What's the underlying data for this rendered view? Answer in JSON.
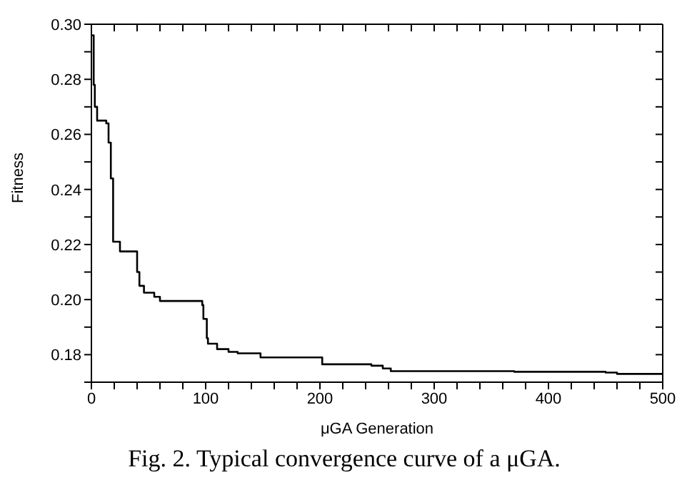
{
  "chart_data": {
    "type": "step",
    "xlabel": "μGA Generation",
    "ylabel": "Fitness",
    "annotations": [
      "Fig. 2.  Typical convergence curve of a μGA."
    ],
    "x": [
      0,
      2,
      3,
      5,
      13,
      15,
      17,
      19,
      25,
      39,
      40,
      42,
      46,
      55,
      60,
      96,
      97,
      98,
      101,
      102,
      110,
      120,
      128,
      148,
      202,
      245,
      255,
      262,
      370,
      450,
      460,
      500
    ],
    "series": [
      {
        "color": "#000000",
        "values": [
          0.296,
          0.278,
          0.27,
          0.265,
          0.264,
          0.257,
          0.244,
          0.221,
          0.2175,
          0.2175,
          0.21,
          0.205,
          0.2025,
          0.201,
          0.1995,
          0.1995,
          0.198,
          0.193,
          0.186,
          0.184,
          0.182,
          0.181,
          0.1805,
          0.179,
          0.1765,
          0.176,
          0.175,
          0.174,
          0.1738,
          0.1735,
          0.173,
          0.173
        ]
      }
    ],
    "xlim": [
      0,
      500
    ],
    "ylim": [
      0.17,
      0.3
    ],
    "xticks": [
      0,
      {
        "value": 20,
        "label": null
      },
      {
        "value": 40,
        "label": null
      },
      {
        "value": 60,
        "label": null
      },
      {
        "value": 80,
        "label": null
      },
      100,
      {
        "value": 120,
        "label": null
      },
      {
        "value": 140,
        "label": null
      },
      {
        "value": 160,
        "label": null
      },
      {
        "value": 180,
        "label": null
      },
      200,
      {
        "value": 220,
        "label": null
      },
      {
        "value": 240,
        "label": null
      },
      {
        "value": 260,
        "label": null
      },
      {
        "value": 280,
        "label": null
      },
      300,
      {
        "value": 320,
        "label": null
      },
      {
        "value": 340,
        "label": null
      },
      {
        "value": 360,
        "label": null
      },
      {
        "value": 380,
        "label": null
      },
      400,
      {
        "value": 420,
        "label": null
      },
      {
        "value": 440,
        "label": null
      },
      {
        "value": 460,
        "label": null
      },
      {
        "value": 480,
        "label": null
      },
      500
    ],
    "yticks": [
      {
        "value": 0.17,
        "label": null
      },
      {
        "value": 0.18,
        "label": "0.18"
      },
      {
        "value": 0.19,
        "label": null
      },
      {
        "value": 0.2,
        "label": "0.20"
      },
      {
        "value": 0.21,
        "label": null
      },
      {
        "value": 0.22,
        "label": "0.22"
      },
      {
        "value": 0.23,
        "label": null
      },
      {
        "value": 0.24,
        "label": "0.24"
      },
      {
        "value": 0.25,
        "label": null
      },
      {
        "value": 0.26,
        "label": "0.26"
      },
      {
        "value": 0.27,
        "label": null
      },
      {
        "value": 0.28,
        "label": "0.28"
      },
      {
        "value": 0.29,
        "label": null
      },
      {
        "value": 0.3,
        "label": "0.30"
      }
    ],
    "grid": false,
    "legend": false,
    "marker": "none",
    "line_style": "solid"
  }
}
